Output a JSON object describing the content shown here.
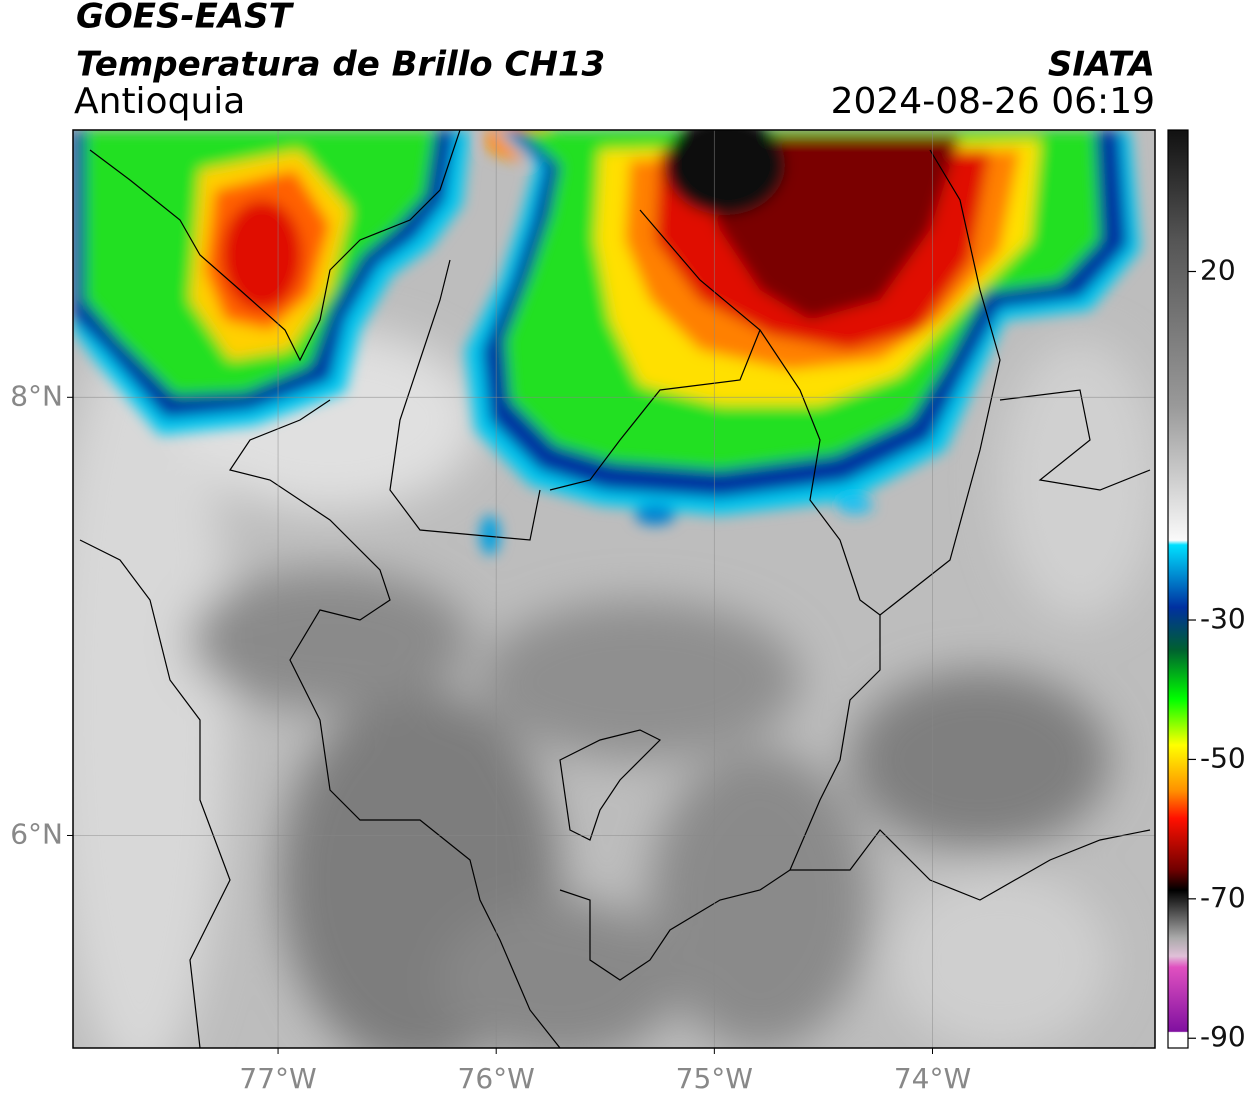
{
  "header": {
    "title": "GOES-EAST",
    "subtitle": "Temperatura de Brillo CH13",
    "region": "Antioquia",
    "source": "SIATA",
    "timestamp": "2024-08-26 06:19"
  },
  "map": {
    "lon_range": [
      -77.94,
      -72.98
    ],
    "lat_range": [
      5.03,
      9.22
    ],
    "grid": true,
    "lon_ticks": [
      {
        "value": -77,
        "label": "77°W"
      },
      {
        "value": -76,
        "label": "76°W"
      },
      {
        "value": -75,
        "label": "75°W"
      },
      {
        "value": -74,
        "label": "74°W"
      }
    ],
    "lat_ticks": [
      {
        "value": 8,
        "label": "8°N"
      },
      {
        "value": 6,
        "label": "6°N"
      }
    ]
  },
  "colorbar": {
    "range": [
      40.3,
      -91.4
    ],
    "ticks": [
      20,
      -30,
      -50,
      -70,
      -90
    ]
  }
}
